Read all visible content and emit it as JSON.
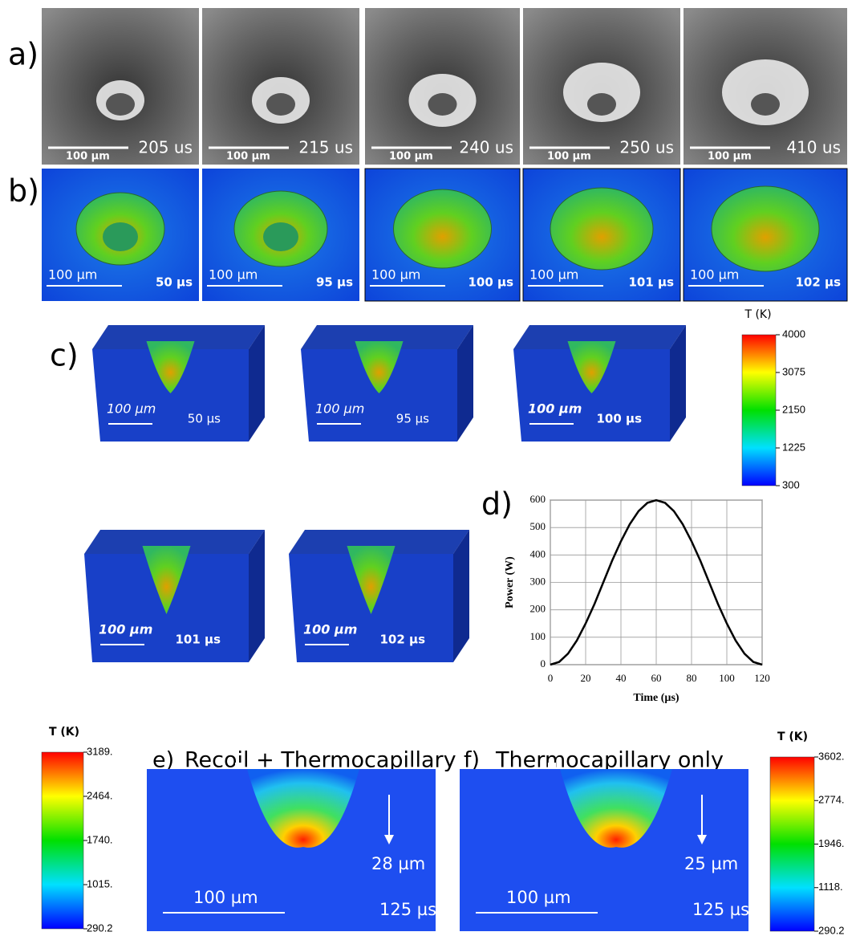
{
  "panels": {
    "a": {
      "label": "a)",
      "frames": [
        {
          "scale": "100 µm",
          "time": "205 us"
        },
        {
          "scale": "100 µm",
          "time": "215 us"
        },
        {
          "scale": "100 µm",
          "time": "240 us"
        },
        {
          "scale": "100 µm",
          "time": "250 us"
        },
        {
          "scale": "100 µm",
          "time": "410 us"
        }
      ]
    },
    "b": {
      "label": "b)",
      "frames": [
        {
          "scale": "100 µm",
          "time": "50 µs"
        },
        {
          "scale": "100 µm",
          "time": "95 µs"
        },
        {
          "scale": "100 µm",
          "time": "100 µs"
        },
        {
          "scale": "100 µm",
          "time": "101 µs"
        },
        {
          "scale": "100 µm",
          "time": "102 µs"
        }
      ]
    },
    "c": {
      "label": "c)",
      "frames": [
        {
          "scale": "100 µm",
          "time": "50 µs"
        },
        {
          "scale": "100 µm",
          "time": "95 µs"
        },
        {
          "scale": "100 µm",
          "time": "100 µs"
        },
        {
          "scale": "100 µm",
          "time": "101 µs"
        },
        {
          "scale": "100 µm",
          "time": "102 µs"
        }
      ],
      "colorbar": {
        "title": "T (K)",
        "ticks": [
          "4000",
          "3075",
          "2150",
          "1225",
          "300"
        ]
      }
    },
    "e": {
      "label": "e)",
      "title": "Recoil + Thermocapillary",
      "depth": "28 µm",
      "scale": "100 µm",
      "time": "125 µs",
      "colorbar": {
        "title": "T (K)",
        "ticks": [
          "3189.",
          "2464.",
          "1740.",
          "1015.",
          "290.2"
        ]
      }
    },
    "f": {
      "label": "f)",
      "title": "Thermocapillary only",
      "depth": "25 µm",
      "scale": "100 µm",
      "time": "125 µs",
      "colorbar": {
        "title": "T (K)",
        "ticks": [
          "3602.",
          "2774.",
          "1946.",
          "1118.",
          "290.2"
        ]
      }
    }
  },
  "chart_data": {
    "type": "line",
    "label": "d)",
    "x_label": "Time (µs)",
    "y_label": "Power (W)",
    "x": [
      0,
      5,
      10,
      15,
      20,
      25,
      30,
      35,
      40,
      45,
      50,
      55,
      60,
      65,
      70,
      75,
      80,
      85,
      90,
      95,
      100,
      105,
      110,
      115,
      120
    ],
    "values": [
      0,
      10,
      40,
      88,
      150,
      221,
      300,
      379,
      450,
      512,
      560,
      590,
      600,
      590,
      560,
      512,
      450,
      379,
      300,
      221,
      150,
      88,
      40,
      10,
      0
    ],
    "color": "#000000",
    "xlim": [
      0,
      120
    ],
    "ylim": [
      0,
      600
    ],
    "xticks": [
      0,
      20,
      40,
      60,
      80,
      100,
      120
    ],
    "yticks": [
      0,
      100,
      200,
      300,
      400,
      500,
      600
    ],
    "grid": true
  }
}
